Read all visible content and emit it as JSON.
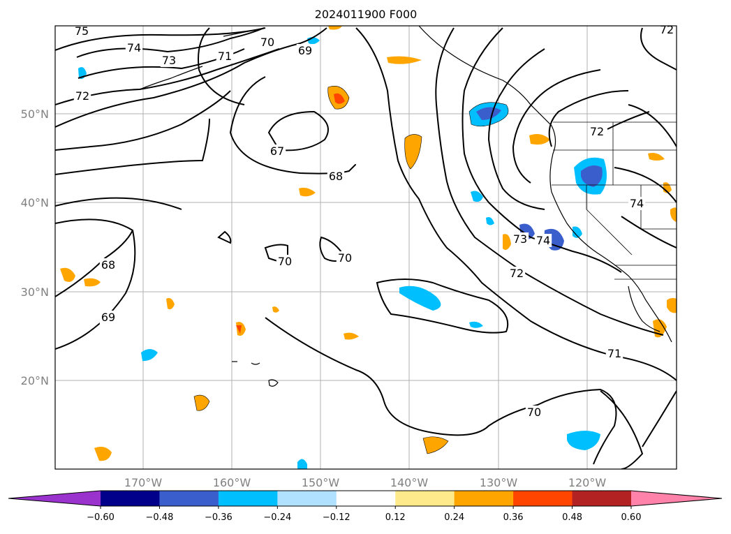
{
  "title": "2024011900 F000",
  "lon_ticks": [
    "170°W",
    "160°W",
    "150°W",
    "140°W",
    "130°W",
    "120°W"
  ],
  "lat_ticks": [
    "50°N",
    "40°N",
    "30°N",
    "20°N"
  ],
  "contour_labels": [
    "75",
    "74",
    "73",
    "72",
    "71",
    "70",
    "69",
    "67",
    "68",
    "68",
    "69",
    "70",
    "70",
    "72",
    "74",
    "71",
    "70",
    "74",
    "72",
    "73",
    "72"
  ],
  "colorbar": {
    "ticks": [
      "−0.60",
      "−0.48",
      "−0.36",
      "−0.24",
      "−0.12",
      "0.12",
      "0.24",
      "0.36",
      "0.48",
      "0.60"
    ],
    "colors": [
      "#9a32cd",
      "#00008b",
      "#3a5fcd",
      "#00bfff",
      "#b0e2ff",
      "#ffffff",
      "#fee98b",
      "#ffa500",
      "#ff4500",
      "#b22222",
      "#ff82ab"
    ]
  }
}
